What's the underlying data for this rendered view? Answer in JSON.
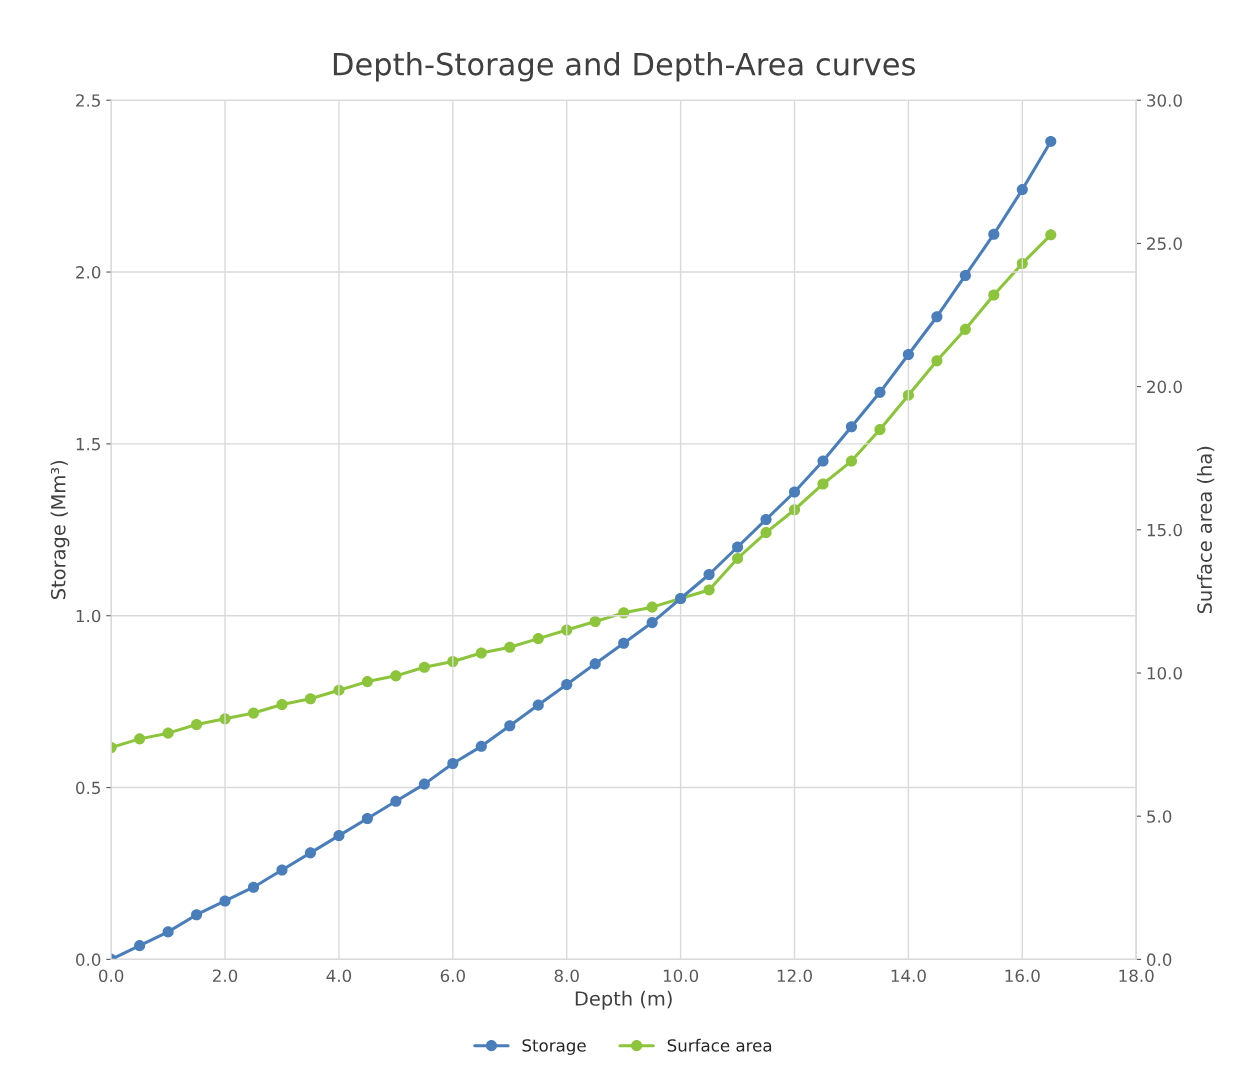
{
  "chart_data": {
    "type": "line",
    "title": "Depth-Storage and Depth-Area curves",
    "xlabel": "Depth (m)",
    "ylabel": "Storage (Mm³)",
    "y2label": "Surface area (ha)",
    "x": [
      0,
      0.5,
      1,
      1.5,
      2,
      2.5,
      3,
      3.5,
      4,
      4.5,
      5,
      5.5,
      6,
      6.5,
      7,
      7.5,
      8,
      8.5,
      9,
      9.5,
      10,
      10.5,
      11,
      11.5,
      12,
      12.5,
      13,
      13.5,
      14,
      14.5,
      15,
      15.5,
      16,
      16.5
    ],
    "series": [
      {
        "name": "Storage",
        "color": "#4a7ebb",
        "values": [
          0.0,
          0.04,
          0.08,
          0.13,
          0.17,
          0.21,
          0.26,
          0.31,
          0.36,
          0.41,
          0.46,
          0.51,
          0.57,
          0.62,
          0.68,
          0.74,
          0.8,
          0.86,
          0.92,
          0.98,
          1.05,
          1.12,
          1.2,
          1.28,
          1.36,
          1.45,
          1.55,
          1.65,
          1.76,
          1.87,
          1.99,
          2.11,
          2.24,
          2.38
        ]
      },
      {
        "name": "Surface area",
        "color": "#8cc43c",
        "axis": "y2",
        "values": [
          7.4,
          7.7,
          7.9,
          8.2,
          8.4,
          8.6,
          8.9,
          9.1,
          9.4,
          9.7,
          9.9,
          10.2,
          10.4,
          10.7,
          10.9,
          11.2,
          11.5,
          11.8,
          12.1,
          12.3,
          12.6,
          12.9,
          14.0,
          14.9,
          15.7,
          16.6,
          17.4,
          18.5,
          19.7,
          20.9,
          22.0,
          23.2,
          24.3,
          25.3
        ]
      }
    ],
    "xlim": [
      0,
      18
    ],
    "xticks": [
      {
        "value": 0,
        "label": "0.0"
      },
      {
        "value": 2,
        "label": "2.0"
      },
      {
        "value": 4,
        "label": "4.0"
      },
      {
        "value": 6,
        "label": "6.0"
      },
      {
        "value": 8,
        "label": "8.0"
      },
      {
        "value": 10,
        "label": "10.0"
      },
      {
        "value": 12,
        "label": "12.0"
      },
      {
        "value": 14,
        "label": "14.0"
      },
      {
        "value": 16,
        "label": "16.0"
      },
      {
        "value": 18,
        "label": "18.0"
      }
    ],
    "ylim": [
      0,
      2.5
    ],
    "yticks": [
      {
        "value": 0,
        "label": "0.0"
      },
      0.5,
      {
        "value": 1,
        "label": "1.0"
      },
      1.5,
      {
        "value": 2,
        "label": "2.0"
      },
      2.5
    ],
    "y2lim": [
      0,
      30
    ],
    "y2ticks": [
      {
        "value": 0,
        "label": "0.0"
      },
      {
        "value": 5,
        "label": "5.0"
      },
      {
        "value": 10,
        "label": "10.0"
      },
      {
        "value": 15,
        "label": "15.0"
      },
      {
        "value": 20,
        "label": "20.0"
      },
      {
        "value": 25,
        "label": "25.0"
      },
      {
        "value": 30,
        "label": "30.0"
      }
    ],
    "grid": true,
    "legend": "bottom",
    "marker": "circle",
    "line_style": "solid"
  }
}
